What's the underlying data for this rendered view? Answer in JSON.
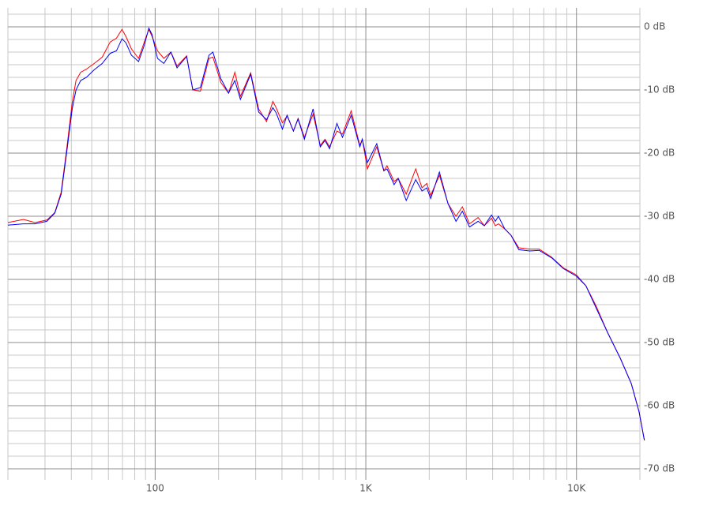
{
  "chart_data": {
    "type": "line",
    "xscale": "log",
    "grid": true,
    "xlim": [
      20,
      20000
    ],
    "ylim": [
      -71,
      3
    ],
    "xticks": [
      {
        "value": 100,
        "label": "100"
      },
      {
        "value": 1000,
        "label": "1K"
      },
      {
        "value": 10000,
        "label": "10K"
      }
    ],
    "xminorticks": [
      20,
      30,
      40,
      50,
      60,
      70,
      80,
      90,
      200,
      300,
      400,
      500,
      600,
      700,
      800,
      900,
      2000,
      3000,
      4000,
      5000,
      6000,
      7000,
      8000,
      9000,
      20000
    ],
    "yticks": [
      {
        "value": 0,
        "label": "0 dB"
      },
      {
        "value": -10,
        "label": "-10 dB"
      },
      {
        "value": -20,
        "label": "-20 dB"
      },
      {
        "value": -30,
        "label": "-30 dB"
      },
      {
        "value": -40,
        "label": "-40 dB"
      },
      {
        "value": -50,
        "label": "-50 dB"
      },
      {
        "value": -60,
        "label": "-60 dB"
      },
      {
        "value": -70,
        "label": "-70 dB"
      }
    ],
    "yminorticks": [
      2,
      -2,
      -4,
      -6,
      -8,
      -12,
      -14,
      -16,
      -18,
      -22,
      -24,
      -26,
      -28,
      -32,
      -34,
      -36,
      -38,
      -42,
      -44,
      -46,
      -48,
      -52,
      -54,
      -56,
      -58,
      -62,
      -64,
      -66,
      -68
    ],
    "x": [
      20,
      23.7,
      26.9,
      30.6,
      33.4,
      35.8,
      38,
      40.4,
      42.1,
      44.3,
      47.2,
      51.4,
      56.1,
      61.2,
      65.5,
      69.6,
      72.6,
      77.2,
      83.4,
      88.6,
      93.3,
      96.6,
      102.6,
      110,
      118.8,
      127,
      141,
      151,
      164,
      180,
      188,
      205,
      223,
      239,
      254,
      284,
      310,
      338,
      362,
      375,
      402,
      423,
      453,
      477,
      511,
      562,
      608,
      640,
      673,
      729,
      775,
      852,
      937,
      962,
      1018,
      1127,
      1218,
      1261,
      1363,
      1424,
      1555,
      1725,
      1849,
      1947,
      2032,
      2235,
      2455,
      2680,
      2873,
      3105,
      3412,
      3653,
      3947,
      4118,
      4261,
      4565,
      4888,
      5322,
      6001,
      6651,
      7628,
      8673,
      10000,
      11080,
      12390,
      14090,
      16150,
      18210,
      19830,
      21000
    ],
    "series": [
      {
        "color": "#ff0000",
        "values": [
          -31,
          -30.5,
          -31,
          -30.6,
          -29.4,
          -26.2,
          -19.5,
          -12,
          -8.5,
          -7.2,
          -6.7,
          -5.8,
          -4.8,
          -2.4,
          -1.8,
          -0.4,
          -1.5,
          -3.5,
          -5,
          -2.5,
          -0.4,
          -1.5,
          -3.8,
          -5,
          -4,
          -6.2,
          -4.6,
          -10,
          -10.2,
          -5,
          -4.8,
          -8.8,
          -10.5,
          -7.2,
          -11,
          -7.3,
          -13,
          -15,
          -11.8,
          -12.8,
          -15.2,
          -14.1,
          -16.5,
          -14.5,
          -17.5,
          -13.8,
          -18.8,
          -17.8,
          -19,
          -16.5,
          -17,
          -13.3,
          -18.8,
          -17.8,
          -22.5,
          -19,
          -22.8,
          -22,
          -24.5,
          -24,
          -26.5,
          -22.5,
          -25.5,
          -24.8,
          -26.7,
          -23.5,
          -28,
          -30,
          -28.5,
          -31.2,
          -30.2,
          -31.5,
          -30.3,
          -31.5,
          -31.2,
          -32,
          -33,
          -35,
          -35.2,
          -35.2,
          -36.5,
          -38.2,
          -39.3,
          -41,
          -44.2,
          -48.5,
          -52.5,
          -56.5,
          -61,
          -65.5
        ]
      },
      {
        "color": "#0000ff",
        "values": [
          -31.4,
          -31.2,
          -31.2,
          -30.8,
          -29.5,
          -26.5,
          -20,
          -13,
          -10,
          -8.5,
          -8,
          -6.8,
          -5.8,
          -4.2,
          -3.8,
          -1.9,
          -2.5,
          -4.5,
          -5.5,
          -3,
          -0.2,
          -1.2,
          -5,
          -5.8,
          -4,
          -6.5,
          -4.7,
          -10,
          -9.6,
          -4.5,
          -4,
          -8.2,
          -10.5,
          -8.5,
          -11.5,
          -7.5,
          -13.5,
          -14.7,
          -12.8,
          -13.6,
          -16.2,
          -14,
          -16.5,
          -14.6,
          -17.8,
          -13,
          -19,
          -18,
          -19.3,
          -15.3,
          -17.5,
          -14,
          -19,
          -17.8,
          -21.5,
          -18.5,
          -22.8,
          -22.5,
          -25,
          -24,
          -27.5,
          -24.2,
          -26,
          -25.5,
          -27.2,
          -23,
          -28,
          -30.8,
          -29.2,
          -31.7,
          -30.8,
          -31.5,
          -29.8,
          -30.8,
          -30,
          -32,
          -33,
          -35.3,
          -35.5,
          -35.4,
          -36.6,
          -38.3,
          -39.5,
          -41,
          -44.5,
          -48.5,
          -52.5,
          -56.5,
          -61,
          -65.5
        ]
      }
    ]
  }
}
